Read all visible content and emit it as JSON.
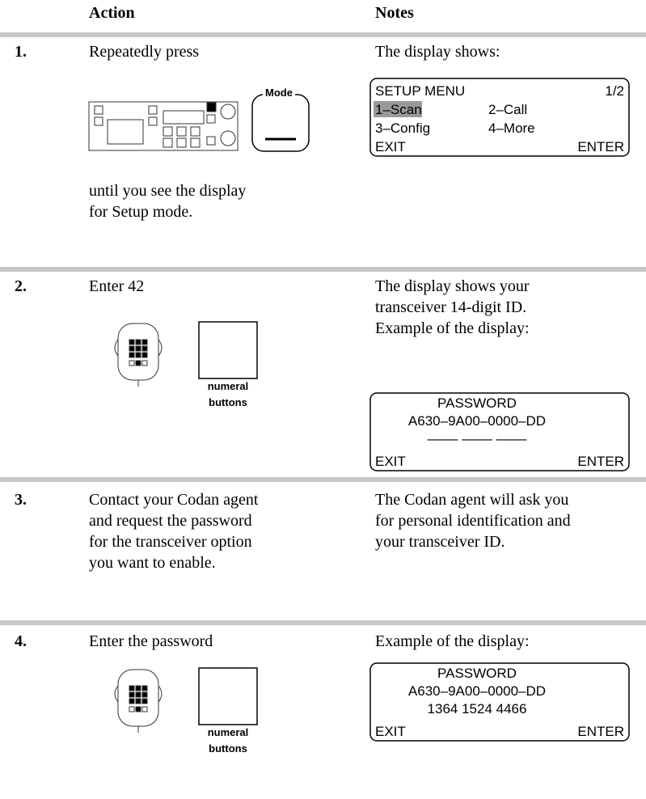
{
  "header": {
    "action": "Action",
    "notes": "Notes"
  },
  "steps": [
    {
      "number": "1.",
      "action": [
        "Repeatedly press"
      ],
      "button": "Mode",
      "action_after": [
        "until you see the display",
        "for Setup mode."
      ],
      "notes": [
        "The display shows:"
      ],
      "display": {
        "title": "SETUP MENU",
        "page": "1/2",
        "items": [
          "1–Scan",
          "2–Call",
          "3–Config",
          "4–More"
        ],
        "left": "EXIT",
        "right": "ENTER"
      }
    },
    {
      "number": "2.",
      "action": [
        "Enter 42"
      ],
      "button": [
        "numeral",
        "buttons"
      ],
      "notes": [
        "The display shows your",
        "transceiver 14-digit ID.",
        "Example of the display:"
      ],
      "display": {
        "lines": [
          "PASSWORD",
          "A630–9A00–0000–DD",
          "––––  ––––  ––––"
        ],
        "left": "EXIT",
        "right": "ENTER"
      }
    },
    {
      "number": "3.",
      "action": [
        "Contact your Codan agent",
        "and request the password",
        "for the transceiver option",
        "you want to enable."
      ],
      "notes": [
        "The Codan agent will ask you",
        "for personal identification and",
        "your transceiver ID."
      ]
    },
    {
      "number": "4.",
      "action": [
        "Enter the password"
      ],
      "button": [
        "numeral",
        "buttons"
      ],
      "notes": [
        "Example of the display:"
      ],
      "display": {
        "lines": [
          "PASSWORD",
          "A630–9A00–0000–DD",
          "1364  1524  4466"
        ],
        "left": "EXIT",
        "right": "ENTER"
      }
    }
  ]
}
